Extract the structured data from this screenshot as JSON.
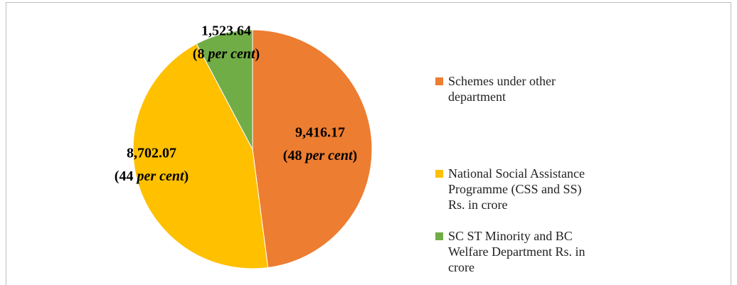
{
  "chart_data": {
    "type": "pie",
    "categories": [
      "Schemes under other department",
      "National Social Assistance Programme (CSS and SS) Rs. in crore",
      "SC ST Minority and BC Welfare Department Rs. in crore"
    ],
    "values": [
      9416.17,
      8702.07,
      1523.64
    ],
    "value_labels": [
      "9,416.17",
      "8,702.07",
      "1,523.64"
    ],
    "percent_labels": [
      "(48 per cent)",
      "(44 per cent)",
      "(8 per cent)"
    ],
    "colors": [
      "#ED7D31",
      "#FFC000",
      "#70AD47"
    ],
    "legend": "right"
  }
}
